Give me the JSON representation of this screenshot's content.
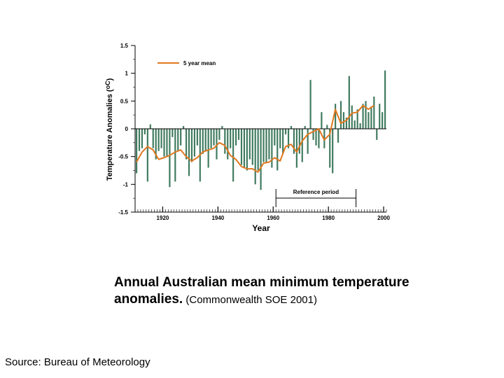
{
  "chart_data": {
    "type": "bar",
    "ylabel_text": "Temperature  Anomalies (",
    "ylabel_unit": "oC",
    "ylabel_close": ")",
    "xlabel": "Year",
    "ylim": [
      -1.5,
      1.5
    ],
    "xlim": [
      1910,
      2001
    ],
    "yticks": [
      "1.5",
      "1",
      "0.5",
      "0",
      "-0.5",
      "-1",
      "-1.5"
    ],
    "ytick_values": [
      1.5,
      1,
      0.5,
      0,
      -0.5,
      -1,
      -1.5
    ],
    "xticks": [
      "1920",
      "1940",
      "1960",
      "1980",
      "2000"
    ],
    "xtick_values": [
      1920,
      1940,
      1960,
      1980,
      2000
    ],
    "grid": false,
    "legend": {
      "position": "top-left",
      "entries": [
        "5 year mean"
      ]
    },
    "annotation": {
      "label": "Reference period",
      "range": [
        1961,
        1990
      ]
    },
    "colors": {
      "bars": "#3f7a5e",
      "mean_line": "#e07820",
      "axis": "#000000"
    },
    "years": [
      1910,
      1911,
      1912,
      1913,
      1914,
      1915,
      1916,
      1917,
      1918,
      1919,
      1920,
      1921,
      1922,
      1923,
      1924,
      1925,
      1926,
      1927,
      1928,
      1929,
      1930,
      1931,
      1932,
      1933,
      1934,
      1935,
      1936,
      1937,
      1938,
      1939,
      1940,
      1941,
      1942,
      1943,
      1944,
      1945,
      1946,
      1947,
      1948,
      1949,
      1950,
      1951,
      1952,
      1953,
      1954,
      1955,
      1956,
      1957,
      1958,
      1959,
      1960,
      1961,
      1962,
      1963,
      1964,
      1965,
      1966,
      1967,
      1968,
      1969,
      1970,
      1971,
      1972,
      1973,
      1974,
      1975,
      1976,
      1977,
      1978,
      1979,
      1980,
      1981,
      1982,
      1983,
      1984,
      1985,
      1986,
      1987,
      1988,
      1989,
      1990,
      1991,
      1992,
      1993,
      1994,
      1995,
      1996,
      1997,
      1998,
      1999,
      2000
    ],
    "anomalies": [
      -0.8,
      -0.4,
      -0.35,
      -0.1,
      -0.95,
      0.08,
      -0.35,
      -0.55,
      -0.4,
      -0.35,
      -0.5,
      -0.5,
      -1.05,
      -0.15,
      -0.95,
      -0.4,
      -0.3,
      0.05,
      -0.55,
      -0.85,
      -0.6,
      -0.5,
      -0.3,
      -0.95,
      -0.45,
      -0.4,
      -0.7,
      -0.35,
      -0.3,
      -0.55,
      -0.2,
      0.05,
      -0.45,
      -0.55,
      -0.35,
      -0.95,
      -0.3,
      -0.2,
      -0.65,
      -0.7,
      -0.75,
      -0.55,
      -0.65,
      -1.0,
      -0.75,
      -1.1,
      -0.6,
      -0.6,
      -0.55,
      -0.7,
      -0.3,
      -0.75,
      -0.35,
      -0.45,
      -0.1,
      -0.35,
      0.05,
      -0.45,
      -0.7,
      -0.45,
      -0.6,
      0.05,
      -0.45,
      0.88,
      -0.2,
      -0.3,
      -0.35,
      0.3,
      -0.35,
      0.07,
      -0.7,
      -0.8,
      0.45,
      -0.25,
      0.5,
      0.3,
      0.2,
      0.95,
      0.42,
      0.15,
      0.35,
      0.1,
      0.45,
      0.5,
      0.3,
      0.4,
      0.58,
      -0.2,
      0.45,
      0.3,
      1.05
    ],
    "mean_years": [
      1910,
      1912,
      1914,
      1916,
      1918,
      1920,
      1922,
      1924,
      1926,
      1928,
      1930,
      1932,
      1934,
      1936,
      1938,
      1940,
      1942,
      1944,
      1946,
      1948,
      1950,
      1952,
      1954,
      1956,
      1958,
      1960,
      1962,
      1964,
      1966,
      1968,
      1970,
      1972,
      1974,
      1976,
      1978,
      1980,
      1982,
      1984,
      1986,
      1988,
      1990,
      1992,
      1994,
      1996
    ],
    "mean_values": [
      -0.6,
      -0.42,
      -0.32,
      -0.38,
      -0.55,
      -0.52,
      -0.48,
      -0.42,
      -0.38,
      -0.5,
      -0.58,
      -0.52,
      -0.42,
      -0.38,
      -0.35,
      -0.25,
      -0.3,
      -0.48,
      -0.55,
      -0.68,
      -0.72,
      -0.72,
      -0.78,
      -0.62,
      -0.6,
      -0.52,
      -0.58,
      -0.32,
      -0.28,
      -0.42,
      -0.22,
      -0.1,
      -0.05,
      0.0,
      -0.2,
      -0.1,
      0.35,
      0.1,
      0.15,
      0.28,
      0.3,
      0.42,
      0.35,
      0.42
    ]
  },
  "caption": {
    "main": "Annual Australian mean minimum temperature anomalies.",
    "small": " (Commonwealth SOE 2001)"
  },
  "source": "Source: Bureau of Meteorology"
}
